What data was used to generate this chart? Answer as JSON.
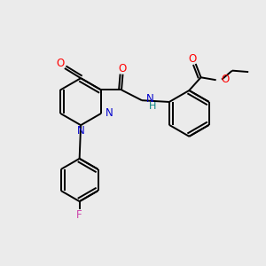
{
  "background_color": "#ebebeb",
  "bond_color": "#000000",
  "atom_colors": {
    "O": "#ff0000",
    "N": "#0000cd",
    "F": "#cc44aa",
    "H": "#008080"
  },
  "lw": 1.4,
  "fs": 8.5,
  "dfs": 8.0
}
